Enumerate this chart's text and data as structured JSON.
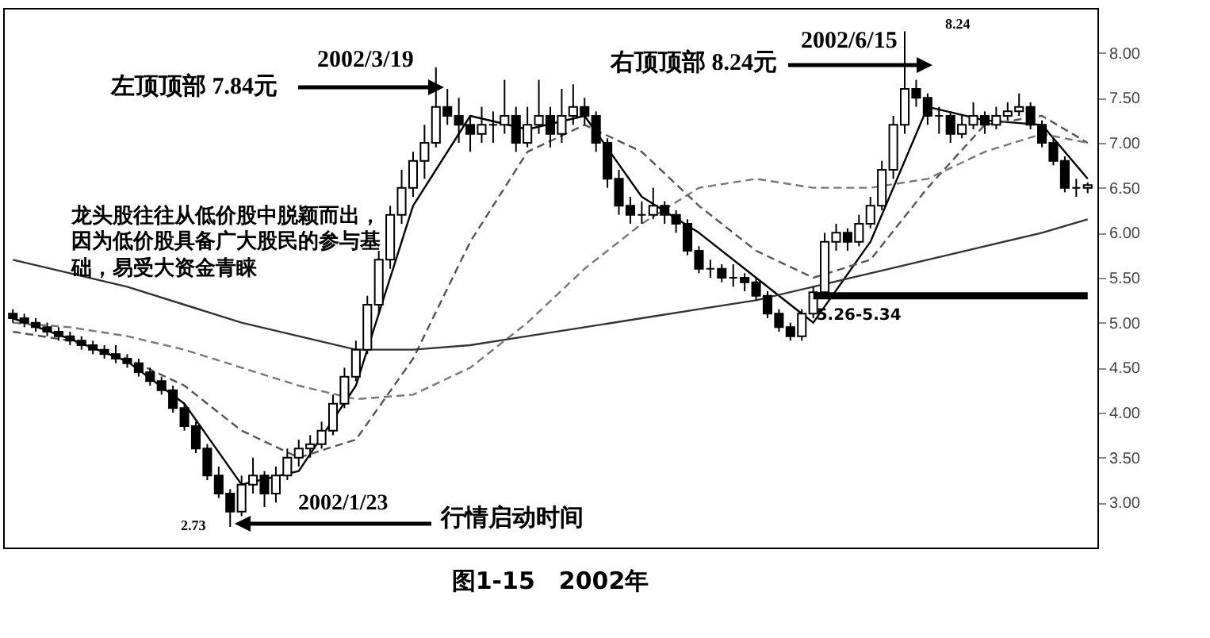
{
  "chart_data": {
    "type": "candlestick",
    "title": "图1-15　2002年",
    "color": "#000000",
    "categories": [
      null,
      null,
      null,
      null,
      null,
      null,
      null,
      null,
      null,
      null,
      null,
      null,
      null,
      null,
      null,
      null,
      null,
      null,
      null,
      null,
      null,
      null,
      null,
      null,
      null,
      null,
      null,
      null,
      null,
      null,
      null,
      null,
      null,
      null,
      null,
      null,
      null,
      null,
      null,
      null,
      null,
      null,
      null,
      null,
      null,
      null,
      null,
      null,
      null,
      null,
      null,
      null,
      null,
      null,
      null,
      null,
      null,
      null,
      null,
      null,
      null,
      null,
      null,
      null,
      null,
      null,
      null,
      null,
      null,
      null,
      null,
      null,
      null,
      null,
      null,
      null,
      null,
      null,
      null,
      null,
      null,
      null,
      null,
      null,
      null,
      null,
      null,
      null,
      null,
      null,
      null,
      null,
      null,
      null,
      null
    ],
    "ohlc": [
      [
        5.1,
        5.15,
        5.0,
        5.05
      ],
      [
        5.05,
        5.1,
        4.95,
        5.0
      ],
      [
        5.0,
        5.05,
        4.9,
        4.95
      ],
      [
        4.95,
        5.0,
        4.85,
        4.9
      ],
      [
        4.9,
        4.95,
        4.8,
        4.85
      ],
      [
        4.85,
        4.9,
        4.75,
        4.8
      ],
      [
        4.8,
        4.85,
        4.7,
        4.75
      ],
      [
        4.75,
        4.8,
        4.65,
        4.7
      ],
      [
        4.7,
        4.75,
        4.6,
        4.65
      ],
      [
        4.65,
        4.75,
        4.55,
        4.6
      ],
      [
        4.6,
        4.65,
        4.5,
        4.55
      ],
      [
        4.55,
        4.6,
        4.4,
        4.45
      ],
      [
        4.45,
        4.5,
        4.3,
        4.35
      ],
      [
        4.35,
        4.4,
        4.2,
        4.25
      ],
      [
        4.25,
        4.3,
        4.0,
        4.05
      ],
      [
        4.05,
        4.1,
        3.8,
        3.85
      ],
      [
        3.85,
        3.9,
        3.55,
        3.6
      ],
      [
        3.6,
        3.65,
        3.25,
        3.3
      ],
      [
        3.3,
        3.4,
        3.05,
        3.1
      ],
      [
        3.1,
        3.15,
        2.73,
        2.9
      ],
      [
        2.9,
        3.3,
        2.85,
        3.2
      ],
      [
        3.2,
        3.5,
        3.1,
        3.3
      ],
      [
        3.3,
        3.35,
        2.95,
        3.1
      ],
      [
        3.1,
        3.4,
        3.0,
        3.3
      ],
      [
        3.3,
        3.6,
        3.25,
        3.5
      ],
      [
        3.5,
        3.7,
        3.4,
        3.6
      ],
      [
        3.6,
        3.75,
        3.5,
        3.65
      ],
      [
        3.65,
        3.9,
        3.6,
        3.8
      ],
      [
        3.8,
        4.2,
        3.75,
        4.1
      ],
      [
        4.1,
        4.5,
        4.05,
        4.4
      ],
      [
        4.4,
        4.8,
        4.35,
        4.7
      ],
      [
        4.7,
        5.3,
        4.65,
        5.2
      ],
      [
        5.2,
        5.8,
        5.1,
        5.7
      ],
      [
        5.7,
        6.3,
        5.6,
        6.2
      ],
      [
        6.2,
        6.7,
        6.1,
        6.5
      ],
      [
        6.5,
        6.9,
        6.4,
        6.8
      ],
      [
        6.8,
        7.2,
        6.6,
        7.0
      ],
      [
        7.0,
        7.84,
        6.95,
        7.4
      ],
      [
        7.4,
        7.6,
        7.2,
        7.3
      ],
      [
        7.3,
        7.5,
        7.0,
        7.2
      ],
      [
        7.2,
        7.3,
        6.9,
        7.1
      ],
      [
        7.1,
        7.4,
        7.0,
        7.2
      ],
      [
        7.2,
        7.35,
        7.0,
        7.2
      ],
      [
        7.2,
        7.7,
        7.1,
        7.3
      ],
      [
        7.3,
        7.4,
        6.9,
        7.0
      ],
      [
        7.0,
        7.4,
        6.95,
        7.2
      ],
      [
        7.2,
        7.7,
        7.1,
        7.3
      ],
      [
        7.3,
        7.4,
        6.95,
        7.1
      ],
      [
        7.1,
        7.6,
        7.0,
        7.3
      ],
      [
        7.3,
        7.65,
        7.2,
        7.4
      ],
      [
        7.4,
        7.5,
        7.2,
        7.3
      ],
      [
        7.3,
        7.35,
        6.9,
        7.0
      ],
      [
        7.0,
        7.05,
        6.5,
        6.6
      ],
      [
        6.6,
        6.7,
        6.2,
        6.3
      ],
      [
        6.3,
        6.4,
        6.1,
        6.2
      ],
      [
        6.2,
        6.35,
        6.1,
        6.2
      ],
      [
        6.2,
        6.5,
        6.15,
        6.3
      ],
      [
        6.3,
        6.35,
        6.1,
        6.2
      ],
      [
        6.2,
        6.25,
        6.0,
        6.1
      ],
      [
        6.1,
        6.15,
        5.75,
        5.8
      ],
      [
        5.8,
        5.85,
        5.55,
        5.6
      ],
      [
        5.6,
        5.7,
        5.5,
        5.6
      ],
      [
        5.6,
        5.65,
        5.45,
        5.5
      ],
      [
        5.5,
        5.65,
        5.4,
        5.5
      ],
      [
        5.5,
        5.55,
        5.35,
        5.45
      ],
      [
        5.45,
        5.5,
        5.25,
        5.3
      ],
      [
        5.3,
        5.35,
        5.05,
        5.1
      ],
      [
        5.1,
        5.15,
        4.9,
        4.95
      ],
      [
        4.95,
        5.0,
        4.8,
        4.85
      ],
      [
        4.85,
        5.15,
        4.8,
        5.1
      ],
      [
        5.1,
        5.4,
        5.05,
        5.34
      ],
      [
        5.34,
        6.0,
        5.3,
        5.9
      ],
      [
        5.9,
        6.1,
        5.8,
        6.0
      ],
      [
        6.0,
        6.05,
        5.8,
        5.9
      ],
      [
        5.9,
        6.2,
        5.85,
        6.1
      ],
      [
        6.1,
        6.4,
        6.05,
        6.3
      ],
      [
        6.3,
        6.8,
        6.25,
        6.7
      ],
      [
        6.7,
        7.3,
        6.6,
        7.2
      ],
      [
        7.2,
        8.24,
        7.1,
        7.6
      ],
      [
        7.6,
        7.7,
        7.4,
        7.5
      ],
      [
        7.5,
        7.55,
        7.2,
        7.3
      ],
      [
        7.3,
        7.4,
        7.1,
        7.3
      ],
      [
        7.3,
        7.35,
        7.0,
        7.1
      ],
      [
        7.1,
        7.3,
        7.05,
        7.2
      ],
      [
        7.2,
        7.45,
        7.15,
        7.3
      ],
      [
        7.3,
        7.35,
        7.1,
        7.2
      ],
      [
        7.2,
        7.4,
        7.15,
        7.3
      ],
      [
        7.3,
        7.45,
        7.25,
        7.35
      ],
      [
        7.35,
        7.55,
        7.3,
        7.4
      ],
      [
        7.4,
        7.45,
        7.15,
        7.2
      ],
      [
        7.2,
        7.25,
        6.95,
        7.0
      ],
      [
        7.0,
        7.05,
        6.75,
        6.8
      ],
      [
        6.8,
        6.85,
        6.45,
        6.5
      ],
      [
        6.5,
        6.6,
        6.4,
        6.5
      ],
      [
        6.5,
        6.56,
        6.44,
        6.53
      ]
    ],
    "series": [
      {
        "type": "line",
        "color": "#000000",
        "line_style": "solid",
        "values": [
          5.05,
          null,
          null,
          null,
          null,
          4.82,
          null,
          null,
          null,
          null,
          4.57,
          null,
          null,
          null,
          null,
          4.1,
          null,
          null,
          null,
          null,
          3.2,
          null,
          null,
          null,
          null,
          3.35,
          null,
          null,
          null,
          null,
          4.3,
          null,
          null,
          null,
          null,
          6.3,
          null,
          null,
          null,
          null,
          7.3,
          null,
          null,
          null,
          null,
          7.15,
          null,
          null,
          null,
          null,
          7.3,
          null,
          null,
          null,
          null,
          6.4,
          null,
          null,
          null,
          null,
          6.0,
          null,
          null,
          null,
          null,
          5.5,
          null,
          null,
          null,
          null,
          5.0,
          null,
          null,
          null,
          null,
          5.9,
          null,
          null,
          null,
          null,
          7.4,
          null,
          null,
          null,
          null,
          7.25,
          null,
          null,
          null,
          null,
          7.2,
          null,
          null,
          null,
          6.6
        ]
      },
      {
        "type": "line",
        "color": "#555555",
        "line_style": "dashed",
        "values": [
          4.9,
          null,
          null,
          null,
          null,
          4.8,
          null,
          null,
          null,
          null,
          4.6,
          null,
          null,
          null,
          null,
          4.3,
          null,
          null,
          null,
          null,
          3.8,
          null,
          null,
          null,
          null,
          3.5,
          null,
          null,
          null,
          null,
          3.7,
          null,
          null,
          null,
          null,
          4.6,
          null,
          null,
          null,
          null,
          5.9,
          null,
          null,
          null,
          null,
          6.9,
          null,
          null,
          null,
          null,
          7.2,
          null,
          null,
          null,
          null,
          6.9,
          null,
          null,
          null,
          null,
          6.3,
          null,
          null,
          null,
          null,
          5.8,
          null,
          null,
          null,
          null,
          5.5,
          null,
          null,
          null,
          null,
          5.7,
          null,
          null,
          null,
          null,
          6.5,
          null,
          null,
          null,
          null,
          7.2,
          null,
          null,
          null,
          null,
          7.3,
          null,
          null,
          null,
          7.0
        ]
      },
      {
        "type": "line",
        "color": "#777777",
        "line_style": "dashed",
        "values": [
          5.0,
          null,
          null,
          null,
          null,
          4.95,
          null,
          null,
          null,
          null,
          4.85,
          null,
          null,
          null,
          null,
          4.7,
          null,
          null,
          null,
          null,
          4.5,
          null,
          null,
          null,
          null,
          4.3,
          null,
          null,
          null,
          null,
          4.15,
          null,
          null,
          null,
          null,
          4.2,
          null,
          null,
          null,
          null,
          4.5,
          null,
          null,
          null,
          null,
          5.0,
          null,
          null,
          null,
          null,
          5.6,
          null,
          null,
          null,
          null,
          6.1,
          null,
          null,
          null,
          null,
          6.5,
          null,
          null,
          null,
          null,
          6.6,
          null,
          null,
          null,
          null,
          6.5,
          null,
          null,
          null,
          null,
          6.5,
          null,
          null,
          null,
          null,
          6.6,
          null,
          null,
          null,
          null,
          6.9,
          null,
          null,
          null,
          null,
          7.1,
          null,
          null,
          null,
          7.0
        ]
      },
      {
        "type": "line",
        "color": "#333333",
        "line_style": "solid",
        "values": [
          5.7,
          null,
          null,
          null,
          null,
          5.55,
          null,
          null,
          null,
          null,
          5.4,
          null,
          null,
          null,
          null,
          5.2,
          null,
          null,
          null,
          null,
          5.0,
          null,
          null,
          null,
          null,
          4.85,
          null,
          null,
          null,
          null,
          4.7,
          null,
          null,
          null,
          null,
          4.7,
          null,
          null,
          null,
          null,
          4.75,
          null,
          null,
          null,
          null,
          4.85,
          null,
          null,
          null,
          null,
          4.95,
          null,
          null,
          null,
          null,
          5.05,
          null,
          null,
          null,
          null,
          5.15,
          null,
          null,
          null,
          null,
          5.25,
          null,
          null,
          null,
          null,
          5.4,
          null,
          null,
          null,
          null,
          5.55,
          null,
          null,
          null,
          null,
          5.7,
          null,
          null,
          null,
          null,
          5.85,
          null,
          null,
          null,
          null,
          6.0,
          null,
          null,
          null,
          6.15
        ]
      }
    ],
    "ylim": [
      2.5,
      8.5
    ],
    "yticks": [
      {
        "value": 3,
        "label": "3.00"
      },
      {
        "value": 3.5,
        "label": "3.50"
      },
      {
        "value": 4,
        "label": "4.00"
      },
      {
        "value": 4.5,
        "label": "4.50"
      },
      {
        "value": 5,
        "label": "5.00"
      },
      {
        "value": 5.5,
        "label": "5.50"
      },
      {
        "value": 6,
        "label": "6.00"
      },
      {
        "value": 6.5,
        "label": "6.50"
      },
      {
        "value": 7,
        "label": "7.00"
      },
      {
        "value": 7.5,
        "label": "7.50"
      },
      {
        "value": 8,
        "label": "8.00"
      }
    ],
    "tick_labels": "y",
    "bands": [
      {
        "axis": "y",
        "from": 5.26,
        "to": 5.34,
        "label": "5.26-5.34",
        "color": "#000000"
      }
    ],
    "annotations": [
      "左顶顶部 7.84元",
      "2002/3/19",
      "右顶顶部 8.24元",
      "2002/6/15",
      "龙头股往往从低价股中脱颖而出，因为低价股具备广大股民的参与基础，易受大资金青睐",
      "8.24",
      "2002/1/23",
      "行情启动时间",
      "2.73"
    ]
  }
}
